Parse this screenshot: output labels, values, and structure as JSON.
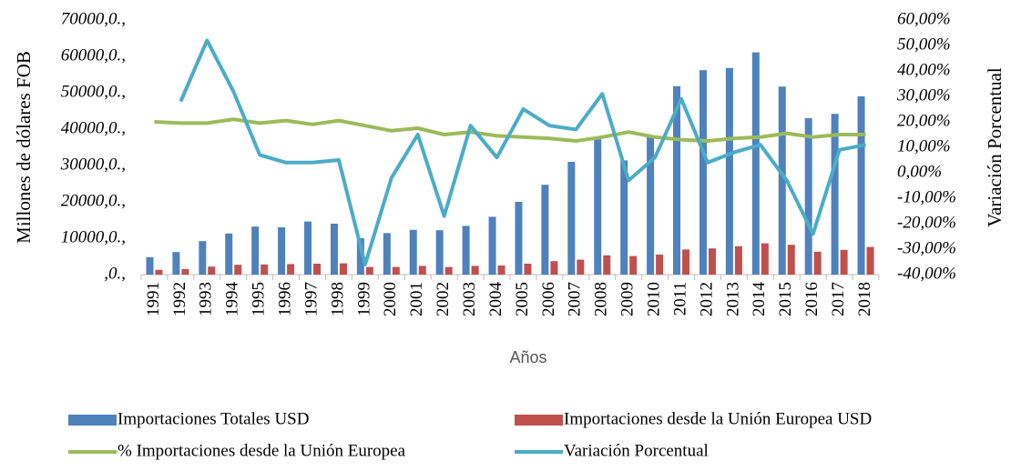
{
  "chart_data": {
    "type": "bar-line",
    "x_axis_label": "Años",
    "y_axis_label": "Millones de dólares FOB",
    "y2_axis_label": "Variación Porcentual",
    "categories": [
      "1991",
      "1992",
      "1993",
      "1994",
      "1995",
      "1996",
      "1997",
      "1998",
      "1999",
      "2000",
      "2001",
      "2002",
      "2003",
      "2004",
      "2005",
      "2006",
      "2007",
      "2008",
      "2009",
      "2010",
      "2011",
      "2012",
      "2013",
      "2014",
      "2015",
      "2016",
      "2017",
      "2018"
    ],
    "series": [
      {
        "name": "Importaciones Totales USD",
        "type": "bar",
        "color": "#4f81bd",
        "values": [
          4800,
          6200,
          9200,
          11300,
          13200,
          13000,
          14600,
          14000,
          10000,
          11400,
          12300,
          12200,
          13400,
          15900,
          20000,
          24700,
          31000,
          37200,
          31400,
          38000,
          51800,
          56200,
          56800,
          61100,
          51700,
          43000,
          44200,
          49000
        ]
      },
      {
        "name": "Importaciones desde la Unión Europea USD",
        "type": "bar",
        "color": "#c0504d",
        "values": [
          1300,
          1500,
          2200,
          2700,
          2800,
          2900,
          3000,
          3100,
          2100,
          2100,
          2400,
          2100,
          2400,
          2500,
          3000,
          3700,
          4100,
          5300,
          5100,
          5500,
          6900,
          7200,
          7800,
          8600,
          8200,
          6300,
          6800,
          7600
        ]
      },
      {
        "name": "% Importaciones desde la Unión Europea",
        "type": "line",
        "axis": "y2",
        "color": "#9bbb59",
        "values": [
          20,
          19.5,
          19.5,
          21,
          19.5,
          20.5,
          19,
          20.5,
          18.5,
          16.5,
          17.5,
          15,
          16,
          14.5,
          14,
          13.5,
          12.5,
          14,
          16,
          14,
          13,
          12.5,
          13.5,
          14,
          15.5,
          14,
          15,
          15
        ]
      },
      {
        "name": "Variación Porcentual",
        "type": "line",
        "axis": "y2",
        "color": "#4bacc6",
        "values": [
          null,
          28,
          52,
          32,
          7,
          4,
          4,
          5,
          -36,
          -2,
          15,
          -17,
          18.5,
          6,
          25,
          18.5,
          17,
          31,
          -3,
          6,
          29,
          4,
          8,
          11,
          -3,
          -24,
          9,
          11
        ]
      }
    ],
    "ylim": [
      0,
      70000
    ],
    "yticks": [
      {
        "value": 0,
        "label": ",0.,"
      },
      {
        "value": 10000,
        "label": "10000,0.,"
      },
      {
        "value": 20000,
        "label": "20000,0.,"
      },
      {
        "value": 30000,
        "label": "30000,0.,"
      },
      {
        "value": 40000,
        "label": "40000,0.,"
      },
      {
        "value": 50000,
        "label": "50000,0.,"
      },
      {
        "value": 60000,
        "label": "60000,0.,"
      },
      {
        "value": 70000,
        "label": "70000,0.,"
      }
    ],
    "y2lim": [
      -40,
      60
    ],
    "y2ticks": [
      {
        "value": -40,
        "label": "-40,00%"
      },
      {
        "value": -30,
        "label": "-30,00%"
      },
      {
        "value": -20,
        "label": "-20,00%"
      },
      {
        "value": -10,
        "label": "-10,00%"
      },
      {
        "value": 0,
        "label": "0,00%"
      },
      {
        "value": 10,
        "label": "10,00%"
      },
      {
        "value": 20,
        "label": "20,00%"
      },
      {
        "value": 30,
        "label": "30,00%"
      },
      {
        "value": 40,
        "label": "40,00%"
      },
      {
        "value": 50,
        "label": "50,00%"
      },
      {
        "value": 60,
        "label": "60,00%"
      }
    ],
    "legend": "bottom"
  }
}
